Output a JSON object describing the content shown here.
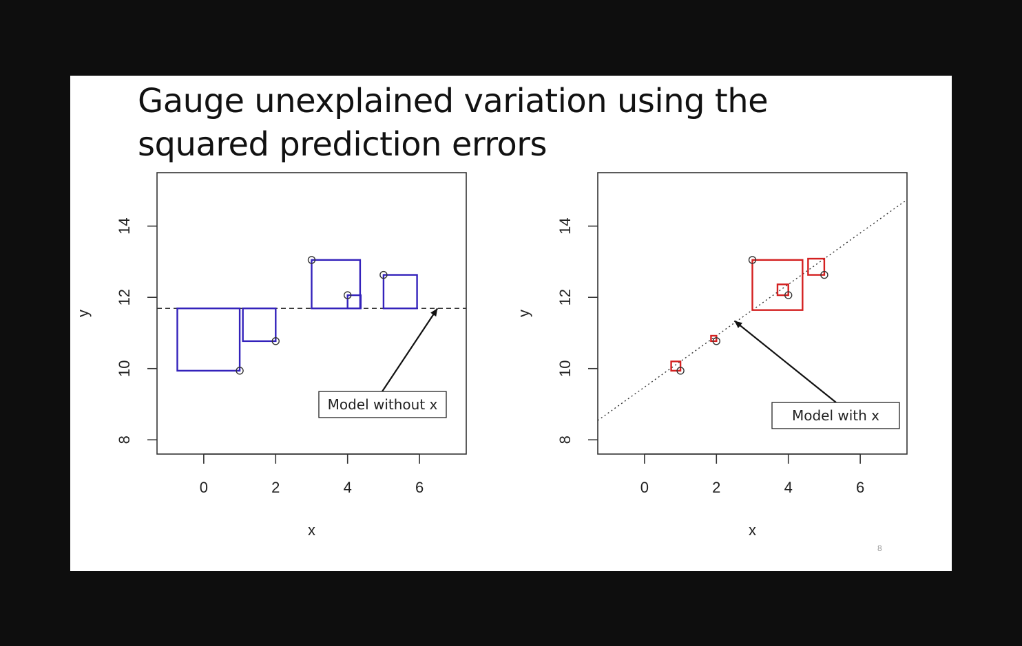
{
  "slide": {
    "title_line1": "Gauge unexplained variation using the",
    "title_line2": "squared prediction errors",
    "page_number": "8"
  },
  "chart_data": [
    {
      "type": "scatter",
      "xlabel": "x",
      "ylabel": "y",
      "xlim": [
        -1.3,
        7.3
      ],
      "ylim": [
        7.6,
        15.5
      ],
      "xticks": [
        0,
        2,
        4,
        6
      ],
      "yticks": [
        8,
        10,
        12,
        14
      ],
      "points": [
        {
          "x": 1,
          "y": 9.94
        },
        {
          "x": 2,
          "y": 10.77
        },
        {
          "x": 3,
          "y": 13.05
        },
        {
          "x": 4,
          "y": 12.06
        },
        {
          "x": 5,
          "y": 12.63
        }
      ],
      "fit": {
        "kind": "mean",
        "y": 11.69,
        "style": "dashed",
        "color": "#333333"
      },
      "squares_color": "#3322bb",
      "annotation": {
        "text": "Model without x",
        "arrow_to": {
          "x": 6.5,
          "y": 11.69
        }
      }
    },
    {
      "type": "scatter",
      "xlabel": "x",
      "ylabel": "y",
      "xlim": [
        -1.3,
        7.3
      ],
      "ylim": [
        7.6,
        15.5
      ],
      "xticks": [
        0,
        2,
        4,
        6
      ],
      "yticks": [
        8,
        10,
        12,
        14
      ],
      "points": [
        {
          "x": 1,
          "y": 9.94
        },
        {
          "x": 2,
          "y": 10.77
        },
        {
          "x": 3,
          "y": 13.05
        },
        {
          "x": 4,
          "y": 12.06
        },
        {
          "x": 5,
          "y": 12.63
        }
      ],
      "fit": {
        "kind": "line",
        "intercept": 9.48,
        "slope": 0.721,
        "style": "dotted",
        "color": "#333333"
      },
      "squares_color": "#d42020",
      "annotation": {
        "text": "Model with x",
        "arrow_to": {
          "x": 2.5,
          "y": 11.34
        }
      }
    }
  ]
}
